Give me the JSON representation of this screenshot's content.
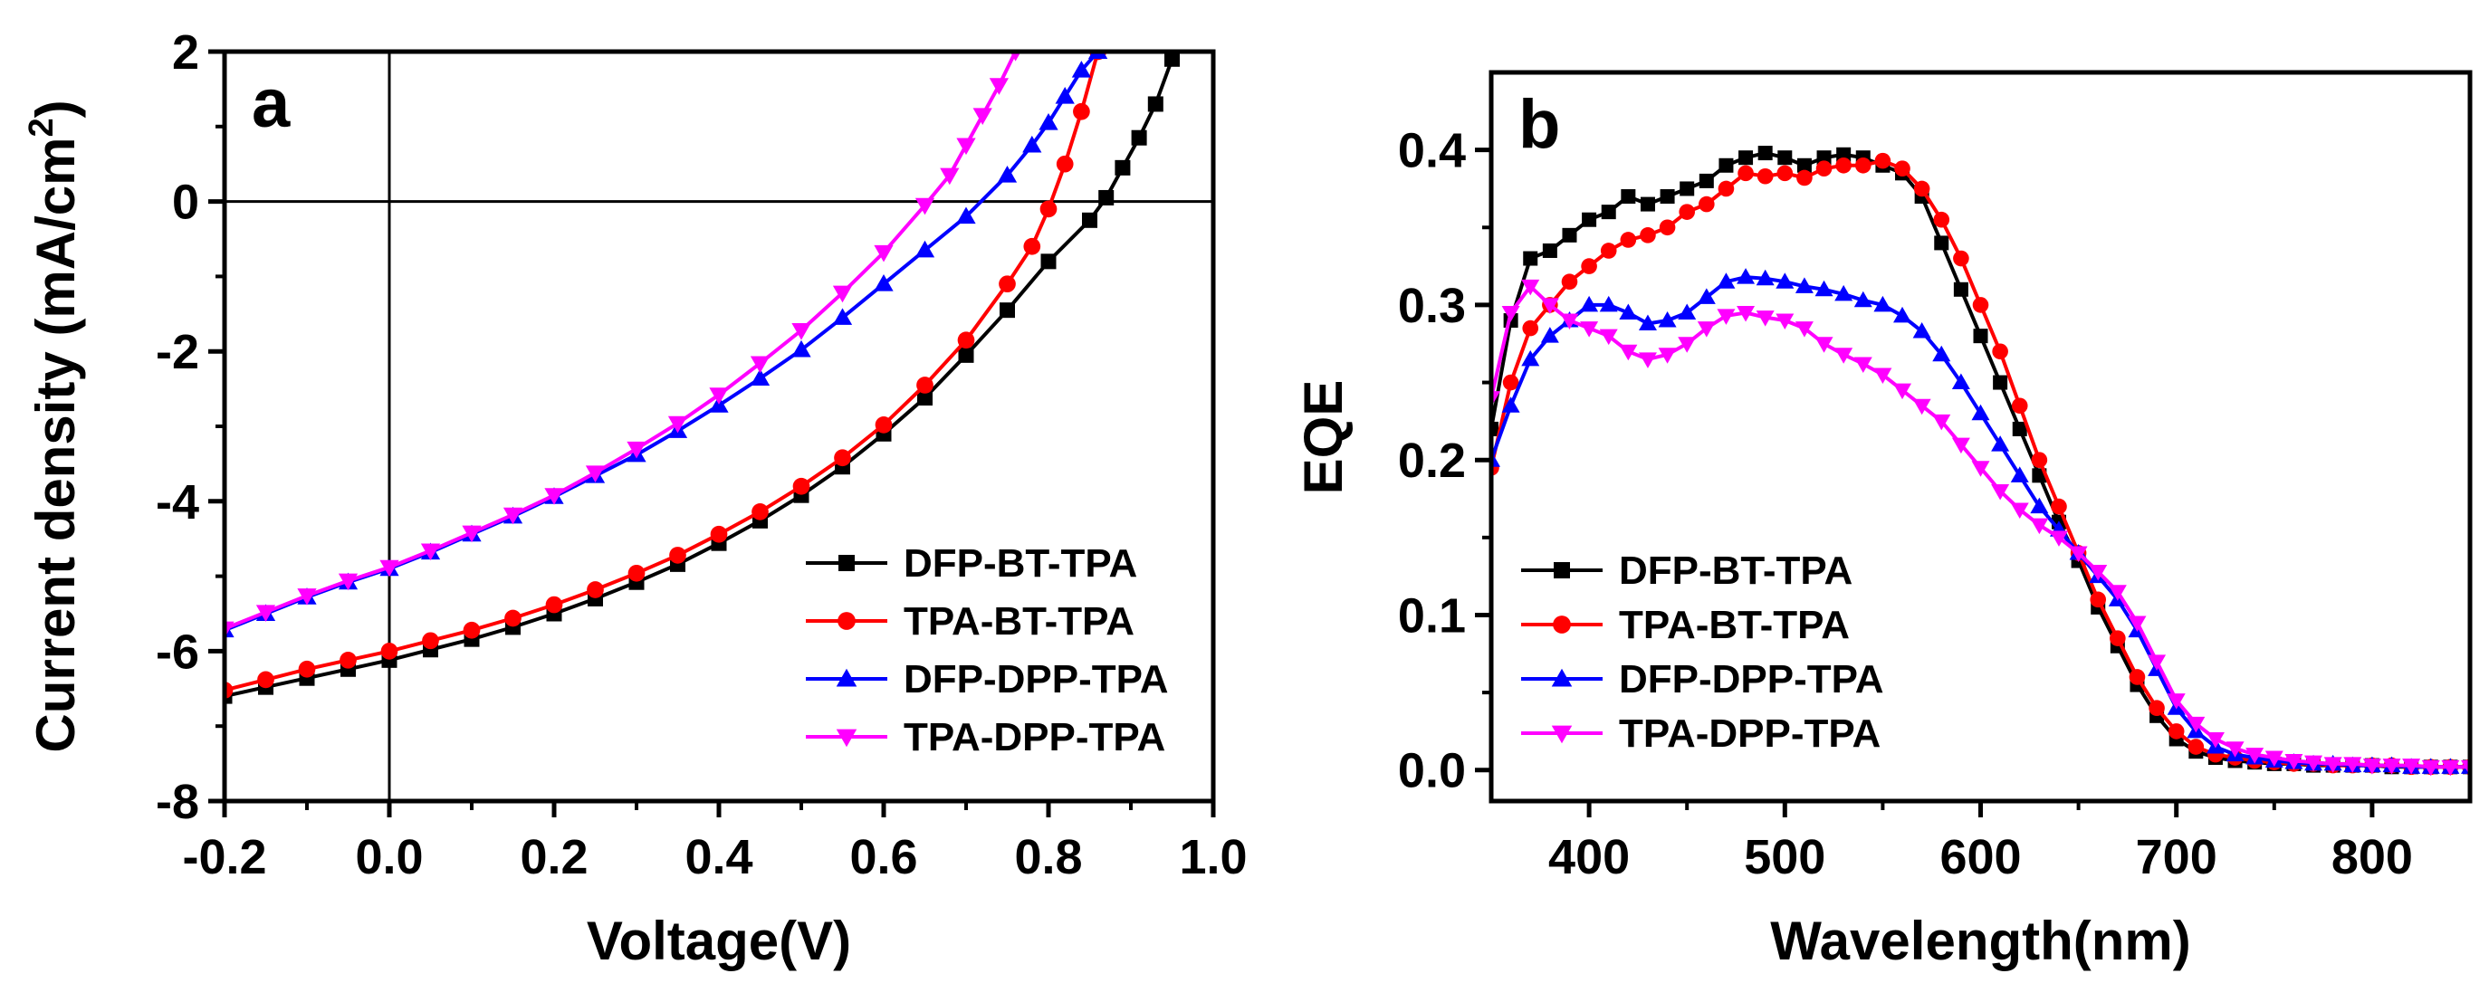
{
  "chart_data": [
    {
      "type": "line",
      "panel_label": "a",
      "xlabel": "Voltage(V)",
      "ylabel_main": "Current  density (mA/cm",
      "ylabel_sup": "2",
      "ylabel_end": ")",
      "xlim": [
        -0.2,
        1.0
      ],
      "ylim": [
        -8,
        2
      ],
      "xticks": [
        -0.2,
        0.0,
        0.2,
        0.4,
        0.6,
        0.8,
        1.0
      ],
      "xtick_labels": [
        "-0.2",
        "0.0",
        "0.2",
        "0.4",
        "0.6",
        "0.8",
        "1.0"
      ],
      "yticks": [
        -8,
        -6,
        -4,
        -2,
        0,
        2
      ],
      "ytick_labels": [
        "-8",
        "-6",
        "-4",
        "-2",
        "0",
        "2"
      ],
      "reference_lines": {
        "x": 0,
        "y": 0
      },
      "legend_position": "lower-right",
      "series": [
        {
          "name": "DFP-BT-TPA",
          "color": "#000000",
          "marker": "square",
          "x": [
            -0.2,
            -0.15,
            -0.1,
            -0.05,
            0.0,
            0.05,
            0.1,
            0.15,
            0.2,
            0.25,
            0.3,
            0.35,
            0.4,
            0.45,
            0.5,
            0.55,
            0.6,
            0.65,
            0.7,
            0.75,
            0.8,
            0.85,
            0.87,
            0.89,
            0.91,
            0.93,
            0.95
          ],
          "y": [
            -6.6,
            -6.48,
            -6.36,
            -6.24,
            -6.12,
            -5.98,
            -5.84,
            -5.68,
            -5.5,
            -5.3,
            -5.08,
            -4.84,
            -4.56,
            -4.26,
            -3.92,
            -3.54,
            -3.1,
            -2.62,
            -2.05,
            -1.45,
            -0.8,
            -0.25,
            0.05,
            0.45,
            0.85,
            1.3,
            1.9
          ]
        },
        {
          "name": "TPA-BT-TPA",
          "color": "#ff0000",
          "marker": "circle",
          "x": [
            -0.2,
            -0.15,
            -0.1,
            -0.05,
            0.0,
            0.05,
            0.1,
            0.15,
            0.2,
            0.25,
            0.3,
            0.35,
            0.4,
            0.45,
            0.5,
            0.55,
            0.6,
            0.65,
            0.7,
            0.75,
            0.78,
            0.8,
            0.82,
            0.84,
            0.86
          ],
          "y": [
            -6.52,
            -6.38,
            -6.24,
            -6.12,
            -6.0,
            -5.86,
            -5.72,
            -5.56,
            -5.38,
            -5.18,
            -4.96,
            -4.72,
            -4.44,
            -4.14,
            -3.8,
            -3.42,
            -2.98,
            -2.45,
            -1.85,
            -1.1,
            -0.6,
            -0.1,
            0.5,
            1.2,
            2.0
          ]
        },
        {
          "name": "DFP-DPP-TPA",
          "color": "#0000ff",
          "marker": "triangle-up",
          "x": [
            -0.2,
            -0.15,
            -0.1,
            -0.05,
            0.0,
            0.05,
            0.1,
            0.15,
            0.2,
            0.25,
            0.3,
            0.35,
            0.4,
            0.45,
            0.5,
            0.55,
            0.6,
            0.65,
            0.7,
            0.75,
            0.78,
            0.8,
            0.82,
            0.84,
            0.86
          ],
          "y": [
            -5.72,
            -5.5,
            -5.28,
            -5.08,
            -4.9,
            -4.68,
            -4.44,
            -4.2,
            -3.94,
            -3.66,
            -3.38,
            -3.06,
            -2.72,
            -2.36,
            -1.98,
            -1.55,
            -1.1,
            -0.65,
            -0.2,
            0.35,
            0.75,
            1.05,
            1.4,
            1.75,
            2.0
          ]
        },
        {
          "name": "TPA-DPP-TPA",
          "color": "#ff00ff",
          "marker": "triangle-down",
          "x": [
            -0.2,
            -0.15,
            -0.1,
            -0.05,
            0.0,
            0.05,
            0.1,
            0.15,
            0.2,
            0.25,
            0.3,
            0.35,
            0.4,
            0.45,
            0.5,
            0.55,
            0.6,
            0.65,
            0.68,
            0.7,
            0.72,
            0.74,
            0.76
          ],
          "y": [
            -5.7,
            -5.48,
            -5.26,
            -5.06,
            -4.88,
            -4.66,
            -4.42,
            -4.18,
            -3.92,
            -3.62,
            -3.3,
            -2.96,
            -2.58,
            -2.16,
            -1.72,
            -1.22,
            -0.68,
            -0.05,
            0.35,
            0.75,
            1.15,
            1.55,
            2.0
          ]
        }
      ]
    },
    {
      "type": "line",
      "panel_label": "b",
      "xlabel": "Wavelength(nm)",
      "ylabel": "EQE",
      "xlim": [
        350,
        850
      ],
      "ylim": [
        -0.02,
        0.45
      ],
      "xticks": [
        400,
        500,
        600,
        700,
        800
      ],
      "xtick_labels": [
        "400",
        "500",
        "600",
        "700",
        "800"
      ],
      "yticks": [
        0.0,
        0.1,
        0.2,
        0.3,
        0.4
      ],
      "ytick_labels": [
        "0.0",
        "0.1",
        "0.2",
        "0.3",
        "0.4"
      ],
      "legend_position": "lower-left",
      "series": [
        {
          "name": "DFP-BT-TPA",
          "color": "#000000",
          "marker": "square",
          "x": [
            350,
            360,
            370,
            380,
            390,
            400,
            410,
            420,
            430,
            440,
            450,
            460,
            470,
            480,
            490,
            500,
            510,
            520,
            530,
            540,
            550,
            560,
            570,
            580,
            590,
            600,
            610,
            620,
            630,
            640,
            650,
            660,
            670,
            680,
            690,
            700,
            710,
            720,
            730,
            740,
            750,
            760,
            770,
            780,
            790,
            800,
            810,
            820,
            830,
            840,
            850
          ],
          "y": [
            0.22,
            0.29,
            0.33,
            0.335,
            0.345,
            0.355,
            0.36,
            0.37,
            0.365,
            0.37,
            0.375,
            0.38,
            0.39,
            0.395,
            0.398,
            0.395,
            0.39,
            0.395,
            0.397,
            0.395,
            0.39,
            0.385,
            0.37,
            0.34,
            0.31,
            0.28,
            0.25,
            0.22,
            0.19,
            0.16,
            0.135,
            0.105,
            0.08,
            0.055,
            0.035,
            0.02,
            0.012,
            0.008,
            0.006,
            0.005,
            0.004,
            0.004,
            0.003,
            0.003,
            0.003,
            0.003,
            0.002,
            0.002,
            0.002,
            0.002,
            0.002
          ]
        },
        {
          "name": "TPA-BT-TPA",
          "color": "#ff0000",
          "marker": "circle",
          "x": [
            350,
            360,
            370,
            380,
            390,
            400,
            410,
            420,
            430,
            440,
            450,
            460,
            470,
            480,
            490,
            500,
            510,
            520,
            530,
            540,
            550,
            560,
            570,
            580,
            590,
            600,
            610,
            620,
            630,
            640,
            650,
            660,
            670,
            680,
            690,
            700,
            710,
            720,
            730,
            740,
            750,
            760,
            770,
            780,
            790,
            800,
            810,
            820,
            830,
            840,
            850
          ],
          "y": [
            0.195,
            0.25,
            0.285,
            0.3,
            0.315,
            0.325,
            0.335,
            0.342,
            0.345,
            0.35,
            0.36,
            0.365,
            0.375,
            0.385,
            0.383,
            0.385,
            0.382,
            0.388,
            0.39,
            0.39,
            0.393,
            0.388,
            0.375,
            0.355,
            0.33,
            0.3,
            0.27,
            0.235,
            0.2,
            0.17,
            0.14,
            0.11,
            0.085,
            0.06,
            0.04,
            0.025,
            0.015,
            0.01,
            0.008,
            0.006,
            0.005,
            0.004,
            0.004,
            0.003,
            0.003,
            0.003,
            0.003,
            0.002,
            0.002,
            0.002,
            0.002
          ]
        },
        {
          "name": "DFP-DPP-TPA",
          "color": "#0000ff",
          "marker": "triangle-up",
          "x": [
            350,
            360,
            370,
            380,
            390,
            400,
            410,
            420,
            430,
            440,
            450,
            460,
            470,
            480,
            490,
            500,
            510,
            520,
            530,
            540,
            550,
            560,
            570,
            580,
            590,
            600,
            610,
            620,
            630,
            640,
            650,
            660,
            670,
            680,
            690,
            700,
            710,
            720,
            730,
            740,
            750,
            760,
            770,
            780,
            790,
            800,
            810,
            820,
            830,
            840,
            850
          ],
          "y": [
            0.2,
            0.235,
            0.265,
            0.28,
            0.29,
            0.3,
            0.3,
            0.295,
            0.288,
            0.29,
            0.295,
            0.305,
            0.315,
            0.318,
            0.317,
            0.315,
            0.312,
            0.31,
            0.307,
            0.303,
            0.3,
            0.293,
            0.283,
            0.268,
            0.25,
            0.23,
            0.21,
            0.19,
            0.17,
            0.155,
            0.14,
            0.125,
            0.11,
            0.09,
            0.065,
            0.04,
            0.025,
            0.015,
            0.01,
            0.008,
            0.006,
            0.005,
            0.004,
            0.004,
            0.003,
            0.003,
            0.003,
            0.002,
            0.002,
            0.002,
            0.002
          ]
        },
        {
          "name": "TPA-DPP-TPA",
          "color": "#ff00ff",
          "marker": "triangle-down",
          "x": [
            350,
            360,
            370,
            380,
            390,
            400,
            410,
            420,
            430,
            440,
            450,
            460,
            470,
            480,
            490,
            500,
            510,
            520,
            530,
            540,
            550,
            560,
            570,
            580,
            590,
            600,
            610,
            620,
            630,
            640,
            650,
            660,
            670,
            680,
            690,
            700,
            710,
            720,
            730,
            740,
            750,
            760,
            770,
            780,
            790,
            800,
            810,
            820,
            830,
            840,
            850
          ],
          "y": [
            0.24,
            0.295,
            0.312,
            0.3,
            0.29,
            0.285,
            0.28,
            0.27,
            0.265,
            0.268,
            0.275,
            0.285,
            0.293,
            0.295,
            0.292,
            0.29,
            0.285,
            0.275,
            0.268,
            0.262,
            0.255,
            0.245,
            0.235,
            0.225,
            0.21,
            0.195,
            0.18,
            0.168,
            0.158,
            0.15,
            0.14,
            0.128,
            0.115,
            0.095,
            0.07,
            0.045,
            0.03,
            0.02,
            0.014,
            0.01,
            0.008,
            0.006,
            0.005,
            0.004,
            0.004,
            0.003,
            0.003,
            0.003,
            0.002,
            0.002,
            0.002
          ]
        }
      ]
    }
  ]
}
